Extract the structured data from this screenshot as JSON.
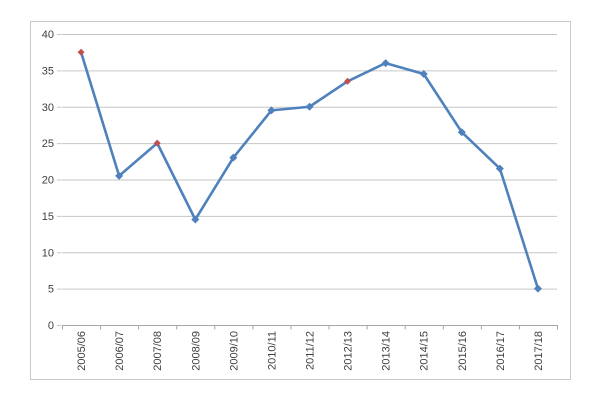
{
  "chart_data": {
    "type": "line",
    "title": "",
    "xlabel": "",
    "ylabel": "",
    "categories": [
      "2005/06",
      "2006/07",
      "2007/08",
      "2008/09",
      "2009/10",
      "2010/11",
      "2011/12",
      "2012/13",
      "2013/14",
      "2014/15",
      "2015/16",
      "2016/17",
      "2017/18"
    ],
    "values": [
      37.5,
      20.5,
      25,
      14.5,
      23,
      29.5,
      30,
      33.5,
      36,
      34.5,
      26.5,
      21.5,
      5
    ],
    "highlighted_point_indices": [
      0,
      2,
      7
    ],
    "y_ticks": [
      0,
      5,
      10,
      15,
      20,
      25,
      30,
      35,
      40
    ],
    "ylim": [
      0,
      40
    ],
    "grid": true,
    "legend": "none",
    "marker_shape": "diamond",
    "colors": {
      "line": "#4F81BD",
      "marker": "#4F81BD",
      "highlight_marker": "#C0504D",
      "gridline": "#C6C6C6",
      "axis": "#A6A6A6",
      "label": "#3F3F3F",
      "frame_border": "#C9C9C9",
      "background": "#FFFFFF"
    }
  }
}
